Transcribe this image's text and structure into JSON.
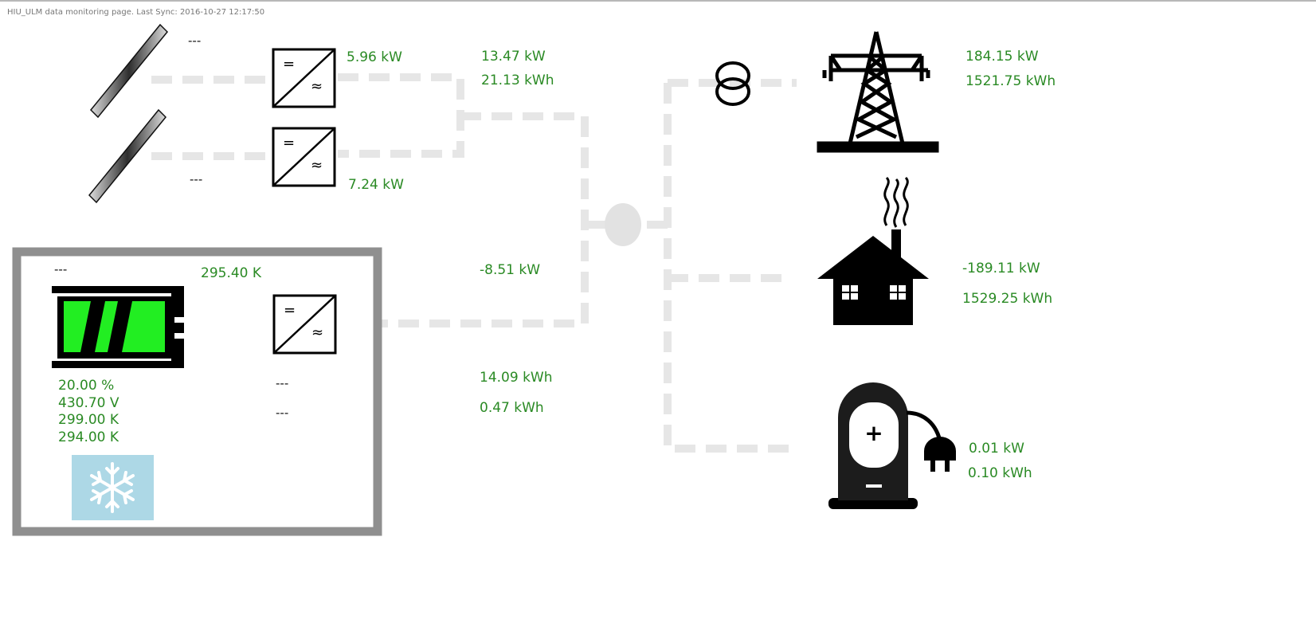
{
  "header": {
    "text": "HIU_ULM data monitoring page. Last Sync: 2016-10-27 12:17:50"
  },
  "pv": {
    "panel1_value": "---",
    "panel2_value": "---",
    "inverter1_power": "5.96 kW",
    "inverter2_power": "7.24 kW",
    "total_power": "13.47 kW",
    "total_energy": "21.13 kWh"
  },
  "battery": {
    "top_value": "---",
    "temperature_top": "295.40 K",
    "soc": "20.00 %",
    "voltage": "430.70 V",
    "temp1": "299.00 K",
    "temp2": "294.00 K",
    "inverter_value1": "---",
    "inverter_value2": "---",
    "power": "-8.51 kW",
    "energy_charged": "14.09 kWh",
    "energy_discharged": "0.47 kWh",
    "fill_color": "#22ee22",
    "cooling_bg": "#add8e6"
  },
  "grid": {
    "power": "184.15 kW",
    "energy": "1521.75 kWh"
  },
  "house": {
    "power": "-189.11 kW",
    "energy": "1529.25 kWh"
  },
  "ev": {
    "power": "0.01 kW",
    "energy": "0.10 kWh"
  },
  "colors": {
    "value_text": "#2a8a24",
    "wire": "#e6e6e6",
    "box_border": "#8f8f8f"
  },
  "icons": [
    "solar-panel-icon",
    "inverter-icon",
    "battery-icon",
    "snowflake-icon",
    "transformer-icon",
    "power-tower-icon",
    "house-icon",
    "ev-charger-icon"
  ]
}
